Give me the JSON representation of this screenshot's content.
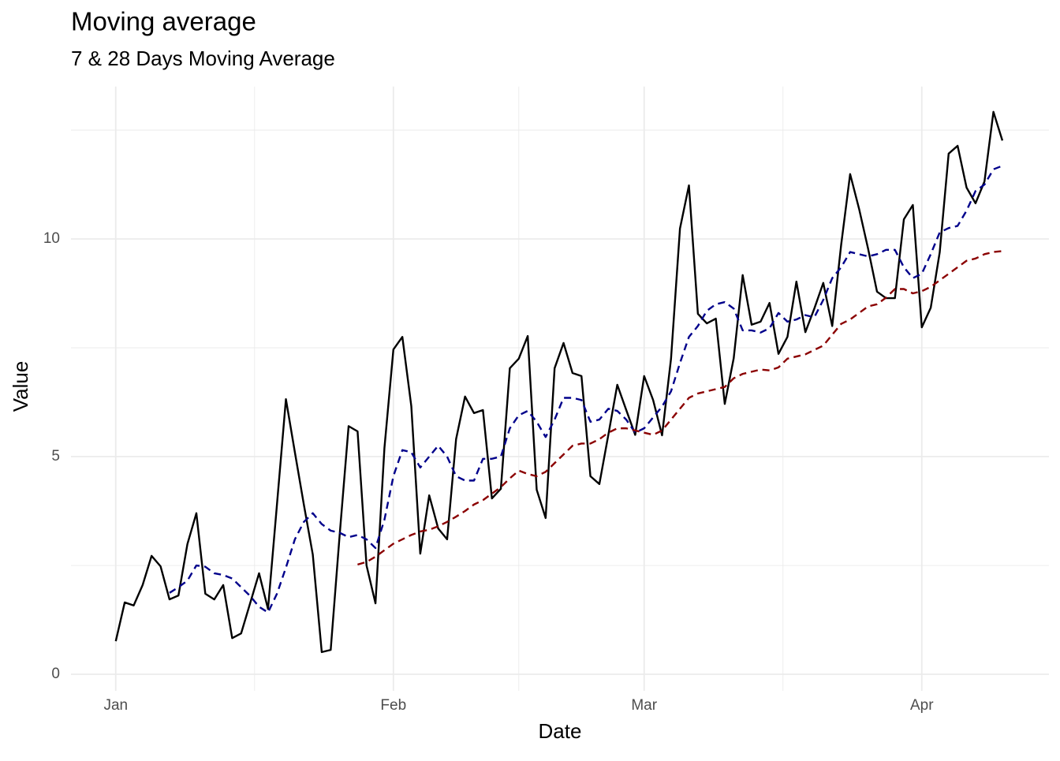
{
  "chart_data": {
    "type": "line",
    "title": "Moving average",
    "subtitle": "7 & 28 Days Moving Average",
    "x_label": "Date",
    "y_label": "Value",
    "x": [
      0,
      1,
      2,
      3,
      4,
      5,
      6,
      7,
      8,
      9,
      10,
      11,
      12,
      13,
      14,
      15,
      16,
      17,
      18,
      19,
      20,
      21,
      22,
      23,
      24,
      25,
      26,
      27,
      28,
      29,
      30,
      31,
      32,
      33,
      34,
      35,
      36,
      37,
      38,
      39,
      40,
      41,
      42,
      43,
      44,
      45,
      46,
      47,
      48,
      49,
      50,
      51,
      52,
      53,
      54,
      55,
      56,
      57,
      58,
      59,
      60,
      61,
      62,
      63,
      64,
      65,
      66,
      67,
      68,
      69,
      70,
      71,
      72,
      73,
      74,
      75,
      76,
      77,
      78,
      79,
      80,
      81,
      82,
      83,
      84,
      85,
      86,
      87,
      88,
      89,
      90,
      91,
      92,
      93,
      94,
      95,
      96,
      97,
      98,
      99
    ],
    "series": [
      {
        "color": "#000000",
        "linestyle": "solid",
        "values": [
          0.76,
          1.65,
          1.58,
          2.05,
          2.72,
          2.48,
          1.72,
          1.81,
          2.99,
          3.7,
          1.85,
          1.72,
          2.05,
          0.83,
          0.94,
          1.63,
          2.32,
          1.5,
          3.9,
          6.32,
          5.1,
          3.9,
          2.75,
          0.51,
          0.56,
          3.2,
          5.7,
          5.58,
          2.5,
          1.63,
          5.2,
          7.46,
          7.75,
          6.16,
          2.77,
          4.11,
          3.35,
          3.1,
          5.4,
          6.38,
          6.0,
          6.07,
          4.04,
          4.26,
          7.03,
          7.25,
          7.77,
          4.24,
          3.59,
          7.03,
          7.61,
          6.92,
          6.85,
          4.55,
          4.37,
          5.5,
          6.65,
          6.07,
          5.5,
          6.85,
          6.3,
          5.49,
          7.25,
          10.24,
          11.23,
          8.28,
          8.06,
          8.17,
          6.21,
          7.26,
          9.17,
          8.03,
          8.1,
          8.53,
          7.36,
          7.75,
          9.02,
          7.86,
          8.4,
          8.99,
          8.0,
          9.87,
          11.49,
          10.69,
          9.78,
          8.79,
          8.64,
          8.64,
          10.45,
          10.78,
          7.97,
          8.42,
          9.69,
          11.96,
          12.14,
          11.18,
          10.82,
          11.32,
          12.92,
          12.26
        ]
      },
      {
        "color": "#00008b",
        "linestyle": "dashed",
        "values": [
          null,
          null,
          null,
          null,
          null,
          null,
          1.87,
          2.0,
          2.15,
          2.5,
          2.47,
          2.32,
          2.28,
          2.2,
          2.0,
          1.8,
          1.55,
          1.42,
          1.85,
          2.45,
          3.1,
          3.5,
          3.7,
          3.45,
          3.3,
          3.25,
          3.15,
          3.2,
          3.1,
          2.9,
          3.55,
          4.55,
          5.15,
          5.1,
          4.75,
          5.0,
          5.25,
          5.0,
          4.55,
          4.45,
          4.45,
          4.95,
          4.95,
          5.0,
          5.65,
          5.95,
          6.05,
          5.8,
          5.45,
          5.85,
          6.35,
          6.35,
          6.3,
          5.8,
          5.85,
          6.1,
          6.05,
          5.85,
          5.55,
          5.65,
          5.9,
          6.15,
          6.5,
          7.15,
          7.75,
          8.0,
          8.35,
          8.5,
          8.55,
          8.4,
          7.9,
          7.9,
          7.85,
          7.95,
          8.3,
          8.1,
          8.15,
          8.25,
          8.2,
          8.6,
          9.1,
          9.35,
          9.7,
          9.65,
          9.6,
          9.65,
          9.75,
          9.75,
          9.35,
          9.1,
          9.2,
          9.65,
          10.15,
          10.25,
          10.3,
          10.65,
          11.1,
          11.25,
          11.6,
          11.68
        ]
      },
      {
        "color": "#8b0000",
        "linestyle": "dashed",
        "values": [
          null,
          null,
          null,
          null,
          null,
          null,
          null,
          null,
          null,
          null,
          null,
          null,
          null,
          null,
          null,
          null,
          null,
          null,
          null,
          null,
          null,
          null,
          null,
          null,
          null,
          null,
          null,
          2.52,
          2.58,
          2.7,
          2.85,
          3.0,
          3.1,
          3.2,
          3.28,
          3.32,
          3.4,
          3.5,
          3.62,
          3.75,
          3.9,
          4.0,
          4.15,
          4.3,
          4.5,
          4.68,
          4.6,
          4.55,
          4.65,
          4.85,
          5.05,
          5.25,
          5.3,
          5.3,
          5.4,
          5.55,
          5.65,
          5.65,
          5.6,
          5.55,
          5.5,
          5.6,
          5.85,
          6.1,
          6.35,
          6.45,
          6.5,
          6.55,
          6.6,
          6.8,
          6.9,
          6.95,
          7.0,
          6.98,
          7.05,
          7.25,
          7.3,
          7.35,
          7.45,
          7.55,
          7.8,
          8.05,
          8.15,
          8.3,
          8.45,
          8.5,
          8.65,
          8.85,
          8.85,
          8.75,
          8.8,
          8.9,
          9.05,
          9.2,
          9.35,
          9.5,
          9.55,
          9.65,
          9.7,
          9.72
        ]
      }
    ],
    "xlim": [
      -5,
      104.2
    ],
    "xticks": [
      {
        "value": 0,
        "label": "Jan"
      },
      {
        "value": 31,
        "label": "Feb"
      },
      {
        "value": 59,
        "label": "Mar"
      },
      {
        "value": 90,
        "label": "Apr"
      }
    ],
    "ylim": [
      -0.38,
      13.5
    ],
    "yticks": [
      0,
      5,
      10
    ],
    "grid": true
  }
}
